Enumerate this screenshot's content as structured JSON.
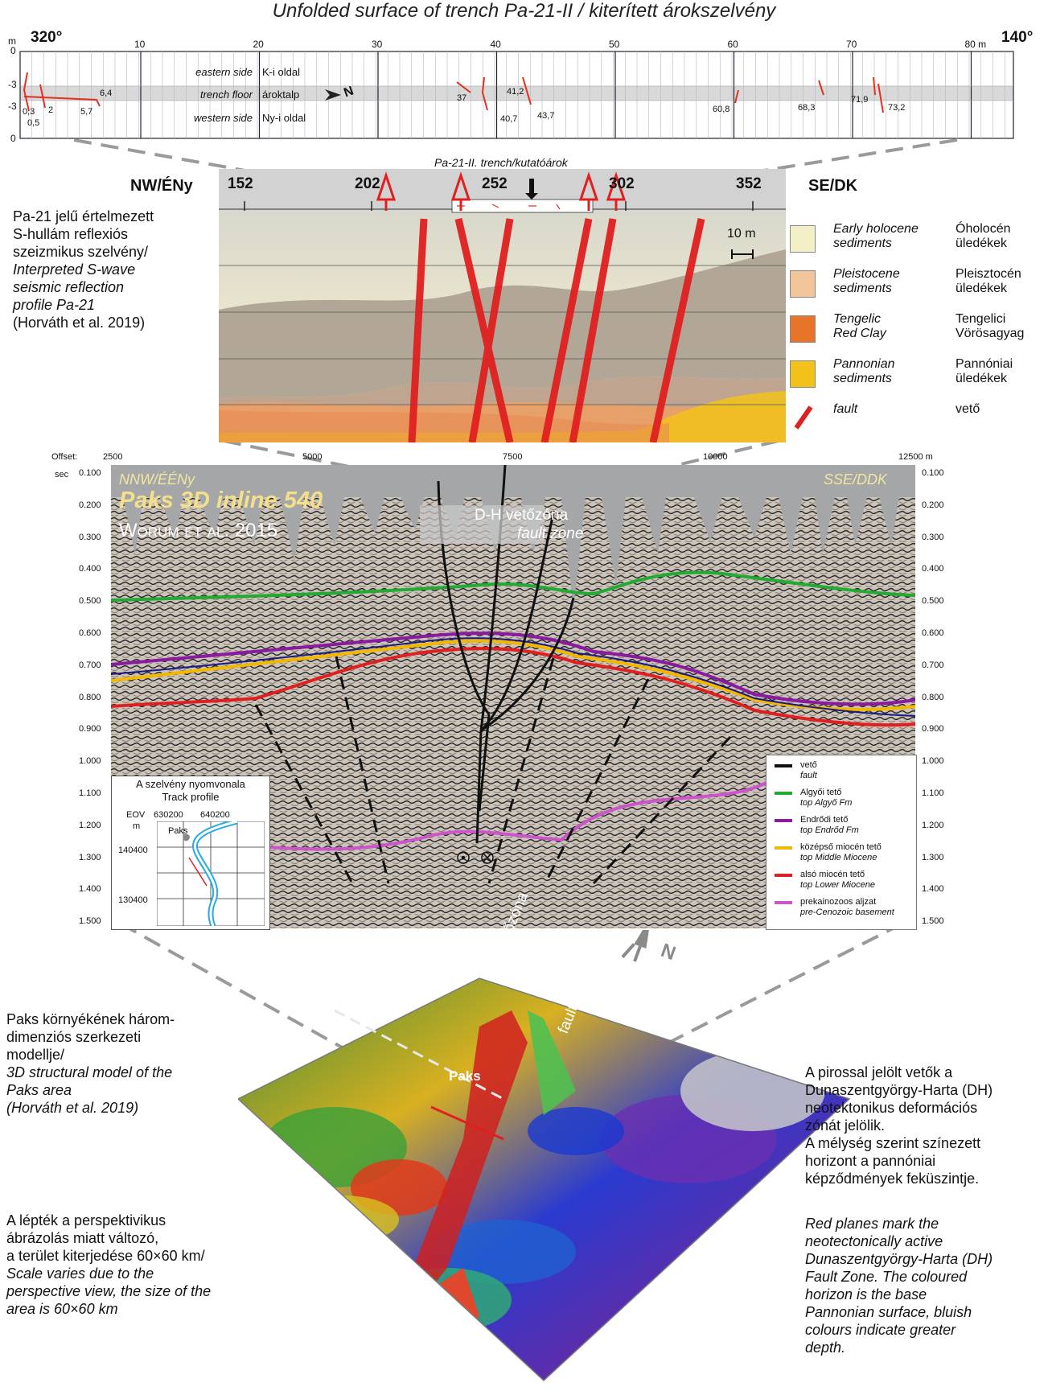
{
  "trench": {
    "title": "Unfolded surface of trench Pa-21-II / kiterített árokszelvény",
    "unit_m": "m",
    "left_azimuth": "320°",
    "right_azimuth": "140°",
    "distance_ticks": [
      "10",
      "20",
      "30",
      "40",
      "50",
      "60",
      "70",
      "80 m"
    ],
    "depth_labels": [
      "0",
      "-3",
      "-3",
      "0"
    ],
    "rows": [
      {
        "en": "eastern side",
        "hu": "K-i oldal"
      },
      {
        "en": "trench floor",
        "hu": "ároktalp"
      },
      {
        "en": "western side",
        "hu": "Ny-i oldal"
      }
    ],
    "north_label": "N",
    "fault_positions": [
      "0,3",
      "0,5",
      "2",
      "5,7",
      "6,4",
      "37",
      "41,2",
      "40,7",
      "43,7",
      "60,8",
      "68,3",
      "71,9",
      "73,2"
    ]
  },
  "pa21": {
    "trench_label": "Pa-21-II. trench/kutatóárok",
    "left_dir": "NW/ÉNy",
    "right_dir": "SE/DK",
    "ticks": [
      "152",
      "202",
      "252",
      "302",
      "352"
    ],
    "scale_label": "10 m",
    "desc_lines": [
      "Pa-21 jelű értelmezett",
      "S-hullám reflexiós",
      "szeizmikus szelvény/",
      "Interpreted S-wave",
      "seismic reflection",
      "profile Pa-21",
      "(Horváth et al. 2019)"
    ],
    "legend": [
      {
        "en1": "Early holocene",
        "en2": "sediments",
        "hu1": "Óholocén",
        "hu2": "üledékek",
        "color": "#f3f0c8"
      },
      {
        "en1": "Pleistocene",
        "en2": "sediments",
        "hu1": "Pleisztocén",
        "hu2": "üledékek",
        "color": "#f2c49a"
      },
      {
        "en1": "Tengelic",
        "en2": "Red Clay",
        "hu1": "Tengelici",
        "hu2": "Vörösagyag",
        "color": "#e8742a"
      },
      {
        "en1": "Pannonian",
        "en2": "sediments",
        "hu1": "Pannóniai",
        "hu2": "üledékek",
        "color": "#f2c21a"
      },
      {
        "en1": "fault",
        "en2": "",
        "hu1": "vető",
        "hu2": "",
        "color": "#e02020"
      }
    ]
  },
  "seismic": {
    "offset_label": "Offset:",
    "offsets": [
      "2500",
      "5000",
      "7500",
      "10000",
      "12500 m"
    ],
    "sec_label": "sec",
    "times": [
      "0.100",
      "0.200",
      "0.300",
      "0.400",
      "0.500",
      "0.600",
      "0.700",
      "0.800",
      "0.900",
      "1.000",
      "1.100",
      "1.200",
      "1.300",
      "1.400",
      "1.500"
    ],
    "left_dir": "NNW/ÉÉNy",
    "right_dir": "SSE/DDK",
    "title": "Paks 3D inline 540",
    "citation": "Worum et al. 2015",
    "fz_hu": "D-H vetőzóna",
    "fz_en": "fault zone",
    "legend": [
      {
        "hu": "vető",
        "en": "fault",
        "color": "#111111"
      },
      {
        "hu": "Algyői tető",
        "en": "top Algyő Fm",
        "color": "#22aa33"
      },
      {
        "hu": "Endrődi tető",
        "en": "top Endrőd Fm",
        "color": "#8a1aa0"
      },
      {
        "hu": "középső miocén tető",
        "en": "top Middle Miocene",
        "color": "#f2b800"
      },
      {
        "hu": "alsó miocén tető",
        "en": "top Lower Miocene",
        "color": "#e02020"
      },
      {
        "hu": "prekainozoos aljzat",
        "en": "pre-Cenozoic basement",
        "color": "#cc55cc"
      }
    ],
    "inset": {
      "title1": "A szelvény nyomvonala",
      "title2": "Track profile",
      "eov": "EOV",
      "m": "m",
      "x1": "630200",
      "x2": "640200",
      "y1": "140400",
      "y2": "130400",
      "town": "Paks"
    }
  },
  "model": {
    "left_desc": [
      "Paks környékének három-",
      "dimenziós szerkezeti",
      "modellje/",
      "3D structural model of the",
      "Paks area",
      "(Horváth et al. 2019)"
    ],
    "left_scale": [
      "A lépték a perspektivikus",
      "ábrázolás miatt változó,",
      "a terület kiterjedése 60×60 km/",
      "Scale varies due to the",
      "perspective view, the size of the",
      "area is 60×60 km"
    ],
    "right_hu": [
      "A pirossal jelölt vetők a",
      "Dunaszentgyörgy-Harta (DH)",
      "neotektonikus deformációs",
      "zónát jelölik.",
      "A mélység szerint színezett",
      "horizont a pannóniai",
      "képződmények feküszintje."
    ],
    "right_en": [
      "Red planes mark the",
      "neotectonically active",
      "Dunaszentgyörgy-Harta (DH)",
      "Fault Zone. The coloured",
      "horizon is the base",
      "Pannonian surface, bluish",
      "colours indicate greater",
      "depth."
    ],
    "labels": {
      "paks": "Paks",
      "dh": "D-H vetőzóna",
      "fz": "fault zone",
      "n": "N"
    }
  }
}
